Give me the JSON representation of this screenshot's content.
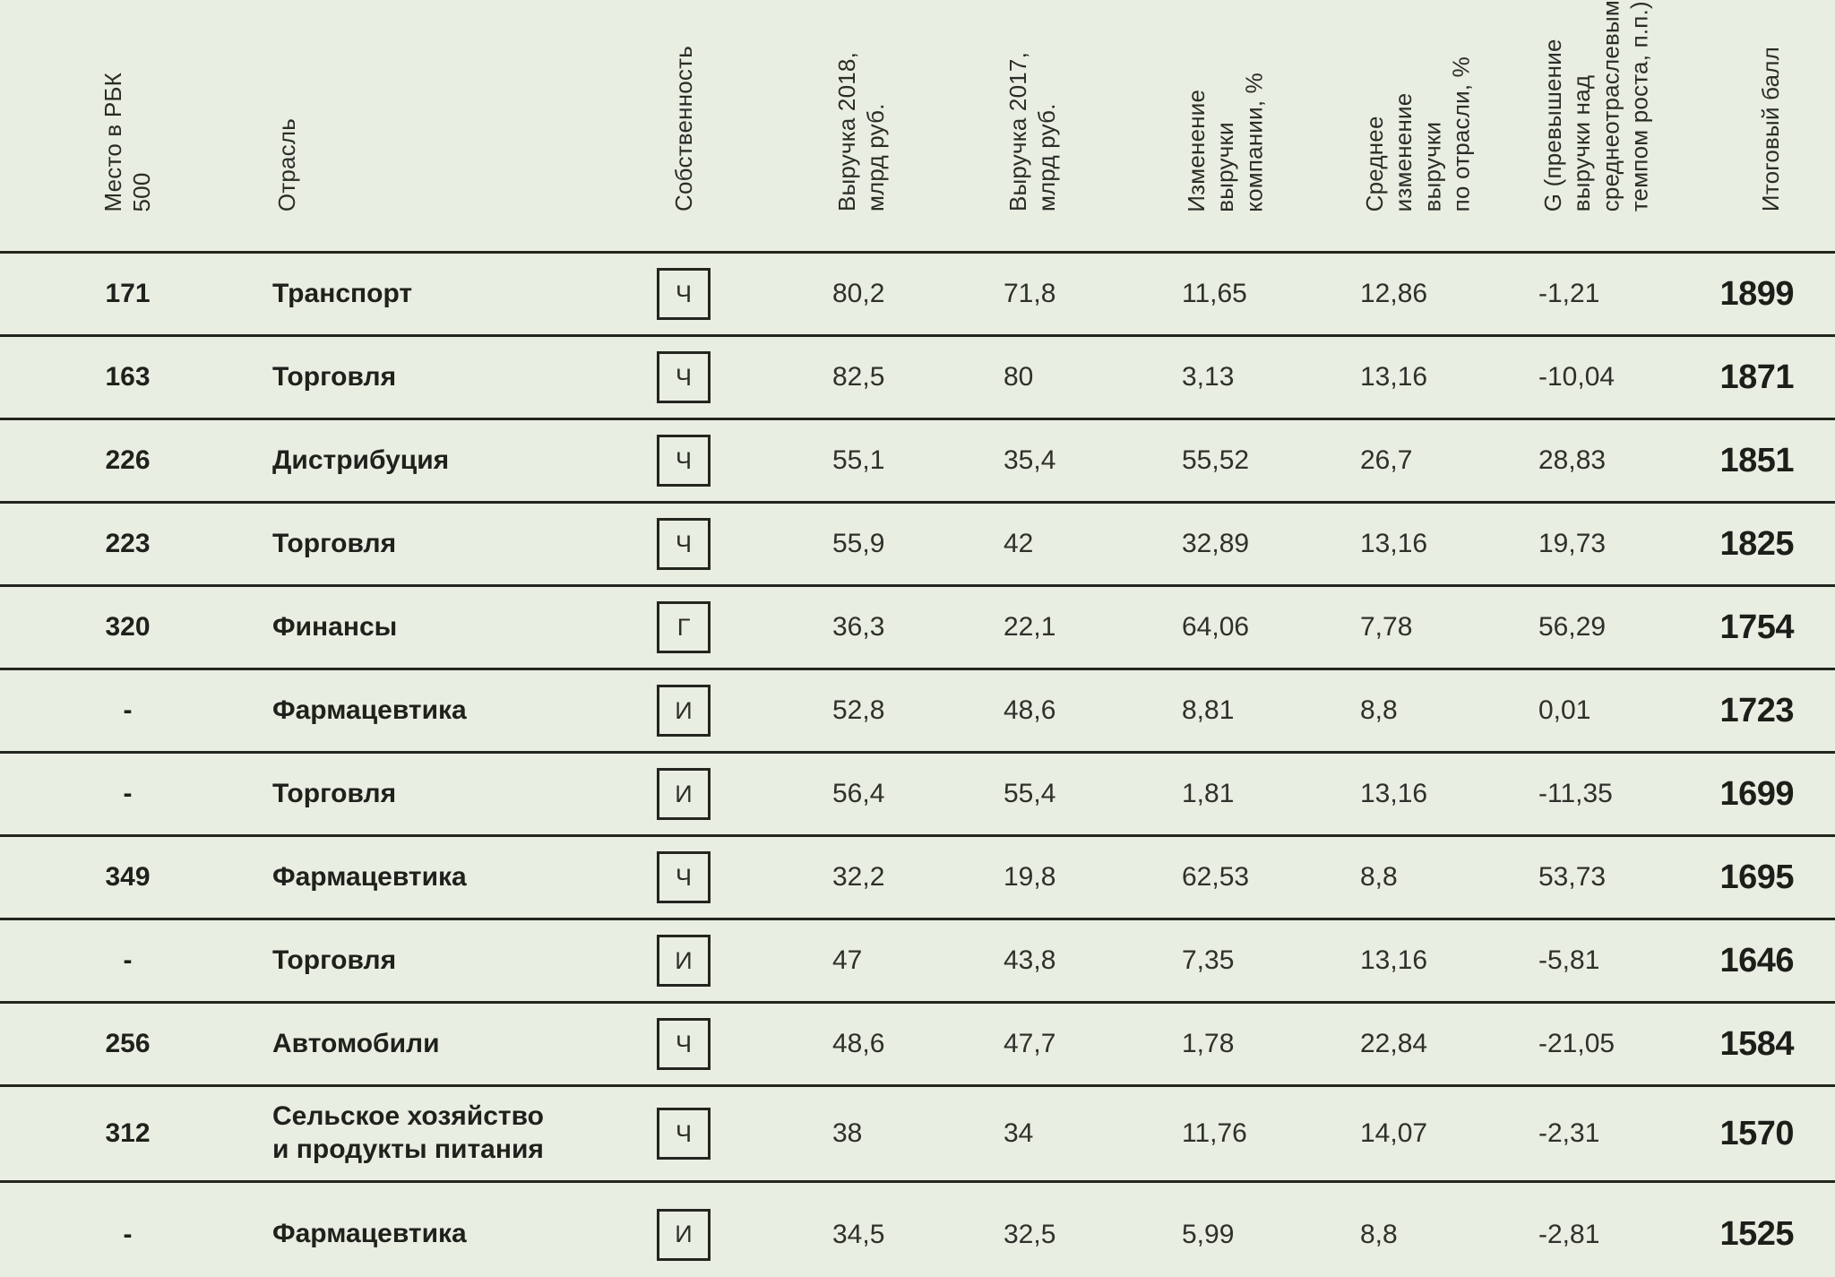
{
  "colors": {
    "background": "#e9eee3",
    "line": "#23261f",
    "text": "#20231e"
  },
  "table": {
    "columns": [
      {
        "id": "rank",
        "label": "Место в РБК\n500"
      },
      {
        "id": "industry",
        "label": "Отрасль"
      },
      {
        "id": "ownership",
        "label": "Собственность"
      },
      {
        "id": "revenue_2018",
        "label": "Выручка 2018,\nмлрд руб."
      },
      {
        "id": "revenue_2017",
        "label": "Выручка 2017,\nмлрд руб."
      },
      {
        "id": "company_change",
        "label": "Изменение\nвыручки\nкомпании, %"
      },
      {
        "id": "industry_avg_change",
        "label": "Среднее\nизменение\nвыручки\nпо отрасли, %"
      },
      {
        "id": "g",
        "label": "G (превышение\nвыручки над\nсреднеотраслевым\nтемпом роста, п.п.)"
      },
      {
        "id": "total_score",
        "label": "Итоговый балл"
      }
    ],
    "rows": [
      {
        "rank": "171",
        "industry": "Транспорт",
        "ownership": "Ч",
        "revenue_2018": "80,2",
        "revenue_2017": "71,8",
        "company_change": "11,65",
        "industry_avg_change": "12,86",
        "g": "-1,21",
        "total_score": "1899"
      },
      {
        "rank": "163",
        "industry": "Торговля",
        "ownership": "Ч",
        "revenue_2018": "82,5",
        "revenue_2017": "80",
        "company_change": "3,13",
        "industry_avg_change": "13,16",
        "g": "-10,04",
        "total_score": "1871"
      },
      {
        "rank": "226",
        "industry": "Дистрибуция",
        "ownership": "Ч",
        "revenue_2018": "55,1",
        "revenue_2017": "35,4",
        "company_change": "55,52",
        "industry_avg_change": "26,7",
        "g": "28,83",
        "total_score": "1851"
      },
      {
        "rank": "223",
        "industry": "Торговля",
        "ownership": "Ч",
        "revenue_2018": "55,9",
        "revenue_2017": "42",
        "company_change": "32,89",
        "industry_avg_change": "13,16",
        "g": "19,73",
        "total_score": "1825"
      },
      {
        "rank": "320",
        "industry": "Финансы",
        "ownership": "Г",
        "revenue_2018": "36,3",
        "revenue_2017": "22,1",
        "company_change": "64,06",
        "industry_avg_change": "7,78",
        "g": "56,29",
        "total_score": "1754"
      },
      {
        "rank": "-",
        "industry": "Фармацевтика",
        "ownership": "И",
        "revenue_2018": "52,8",
        "revenue_2017": "48,6",
        "company_change": "8,81",
        "industry_avg_change": "8,8",
        "g": "0,01",
        "total_score": "1723"
      },
      {
        "rank": "-",
        "industry": "Торговля",
        "ownership": "И",
        "revenue_2018": "56,4",
        "revenue_2017": "55,4",
        "company_change": "1,81",
        "industry_avg_change": "13,16",
        "g": "-11,35",
        "total_score": "1699"
      },
      {
        "rank": "349",
        "industry": "Фармацевтика",
        "ownership": "Ч",
        "revenue_2018": "32,2",
        "revenue_2017": "19,8",
        "company_change": "62,53",
        "industry_avg_change": "8,8",
        "g": "53,73",
        "total_score": "1695"
      },
      {
        "rank": "-",
        "industry": "Торговля",
        "ownership": "И",
        "revenue_2018": "47",
        "revenue_2017": "43,8",
        "company_change": "7,35",
        "industry_avg_change": "13,16",
        "g": "-5,81",
        "total_score": "1646"
      },
      {
        "rank": "256",
        "industry": "Автомобили",
        "ownership": "Ч",
        "revenue_2018": "48,6",
        "revenue_2017": "47,7",
        "company_change": "1,78",
        "industry_avg_change": "22,84",
        "g": "-21,05",
        "total_score": "1584"
      },
      {
        "rank": "312",
        "industry": "Сельское хозяйство\nи продукты питания",
        "ownership": "Ч",
        "revenue_2018": "38",
        "revenue_2017": "34",
        "company_change": "11,76",
        "industry_avg_change": "14,07",
        "g": "-2,31",
        "total_score": "1570"
      },
      {
        "rank": "-",
        "industry": "Фармацевтика",
        "ownership": "И",
        "revenue_2018": "34,5",
        "revenue_2017": "32,5",
        "company_change": "5,99",
        "industry_avg_change": "8,8",
        "g": "-2,81",
        "total_score": "1525"
      }
    ]
  }
}
